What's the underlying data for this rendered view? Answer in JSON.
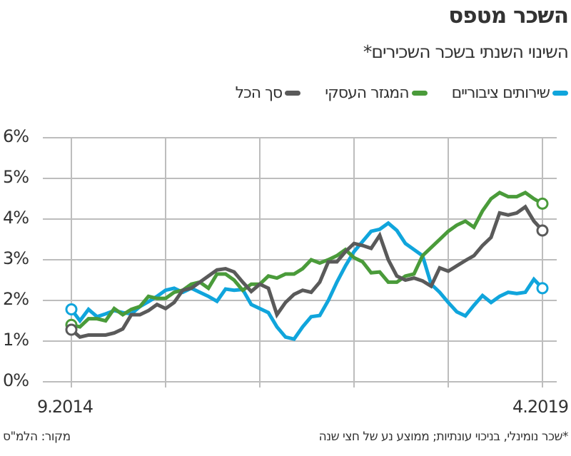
{
  "title": "השכר מטפס",
  "subtitle": "השינוי השנתי בשכר השכירים*",
  "footnote": "*שכר נומינלי, בניכוי עונתיות; ממוצע נע של חצי שנה",
  "source": "מקור: הלמ\"ס",
  "chart_data": {
    "type": "line",
    "title": "השכר מטפס",
    "subtitle": "השינוי השנתי בשכר השכירים*",
    "x_start": "9.2014",
    "x_end": "4.2019",
    "xtick_labels": [
      "9.2014",
      "4.2019"
    ],
    "ytick_labels": [
      "0%",
      "1%",
      "2%",
      "3%",
      "4%",
      "5%",
      "6%"
    ],
    "ylim": [
      0,
      6
    ],
    "grid": true,
    "legend_position": "top",
    "series": [
      {
        "name": "שירותים ציבוריים",
        "color": "#10a5dc",
        "values": [
          1.78,
          1.5,
          1.78,
          1.6,
          1.67,
          1.75,
          1.7,
          1.67,
          1.85,
          1.97,
          2.1,
          2.25,
          2.3,
          2.2,
          2.3,
          2.2,
          2.1,
          1.98,
          2.28,
          2.25,
          2.27,
          1.9,
          1.8,
          1.7,
          1.35,
          1.1,
          1.05,
          1.35,
          1.6,
          1.63,
          2.0,
          2.45,
          2.85,
          3.2,
          3.45,
          3.7,
          3.75,
          3.9,
          3.72,
          3.4,
          3.25,
          3.1,
          2.4,
          2.2,
          1.95,
          1.72,
          1.62,
          1.88,
          2.12,
          1.95,
          2.1,
          2.2,
          2.17,
          2.2,
          2.52,
          2.3
        ]
      },
      {
        "name": "המגזר העסקי",
        "color": "#4a9b3a",
        "values": [
          1.4,
          1.35,
          1.55,
          1.55,
          1.5,
          1.8,
          1.65,
          1.78,
          1.85,
          2.1,
          2.05,
          2.05,
          2.2,
          2.25,
          2.4,
          2.45,
          2.3,
          2.65,
          2.65,
          2.5,
          2.25,
          2.4,
          2.4,
          2.6,
          2.55,
          2.65,
          2.65,
          2.78,
          3.0,
          2.92,
          3.0,
          3.1,
          3.25,
          3.05,
          2.95,
          2.68,
          2.7,
          2.45,
          2.45,
          2.6,
          2.65,
          3.1,
          3.3,
          3.5,
          3.7,
          3.85,
          3.95,
          3.8,
          4.2,
          4.5,
          4.65,
          4.55,
          4.55,
          4.65,
          4.5,
          4.38
        ]
      },
      {
        "name": "סך הכל",
        "color": "#5a5a5a",
        "values": [
          1.28,
          1.1,
          1.15,
          1.15,
          1.15,
          1.2,
          1.3,
          1.65,
          1.65,
          1.75,
          1.9,
          1.8,
          1.95,
          2.25,
          2.3,
          2.45,
          2.6,
          2.75,
          2.78,
          2.7,
          2.45,
          2.22,
          2.4,
          2.3,
          1.65,
          1.95,
          2.15,
          2.25,
          2.2,
          2.45,
          2.95,
          2.95,
          3.2,
          3.4,
          3.35,
          3.28,
          3.6,
          3.0,
          2.6,
          2.5,
          2.55,
          2.48,
          2.35,
          2.8,
          2.72,
          2.85,
          2.98,
          3.1,
          3.35,
          3.55,
          4.15,
          4.1,
          4.15,
          4.3,
          3.95,
          3.72
        ]
      }
    ]
  }
}
